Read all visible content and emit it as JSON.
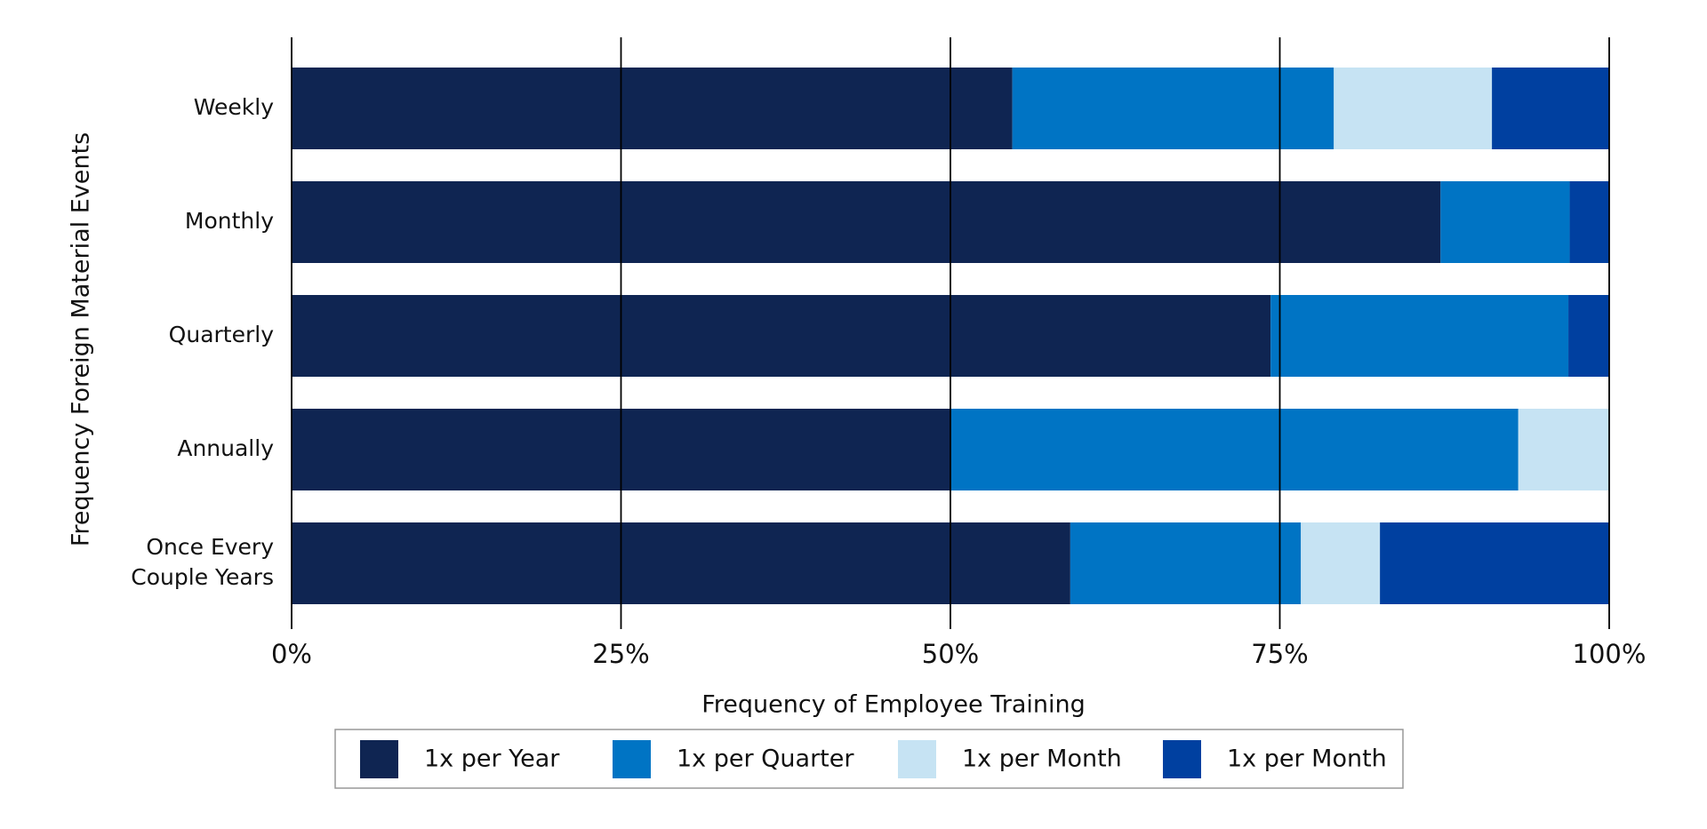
{
  "chart_data": {
    "type": "stacked-bar-horizontal",
    "x_label": "Frequency of Employee Training",
    "y_label": "Frequency Foreign Material Events",
    "categories": [
      "Weekly",
      "Monthly",
      "Quarterly",
      "Annually",
      "Once Every\nCouple Years"
    ],
    "series": [
      {
        "name": "1x per Year",
        "color": "#0f2552",
        "values": [
          54.7,
          87.2,
          74.3,
          50.0,
          59.1
        ]
      },
      {
        "name": "1x per Quarter",
        "color": "#0074c4",
        "values": [
          24.4,
          9.8,
          22.6,
          43.1,
          17.5
        ]
      },
      {
        "name": "1x per Month",
        "color": "#c6e3f3",
        "values": [
          12.0,
          0,
          0,
          6.9,
          6.0
        ]
      },
      {
        "name": "1x per Month",
        "color": "#0040a0",
        "values": [
          8.9,
          3.0,
          3.1,
          0,
          17.4
        ]
      }
    ],
    "xlim": [
      0,
      100
    ],
    "xticks": [
      {
        "value": 0,
        "label": "0%"
      },
      {
        "value": 25,
        "label": "25%"
      },
      {
        "value": 50,
        "label": "50%"
      },
      {
        "value": 75,
        "label": "75%"
      },
      {
        "value": 100,
        "label": "100%"
      }
    ],
    "grid": true,
    "legend": "bottom"
  }
}
